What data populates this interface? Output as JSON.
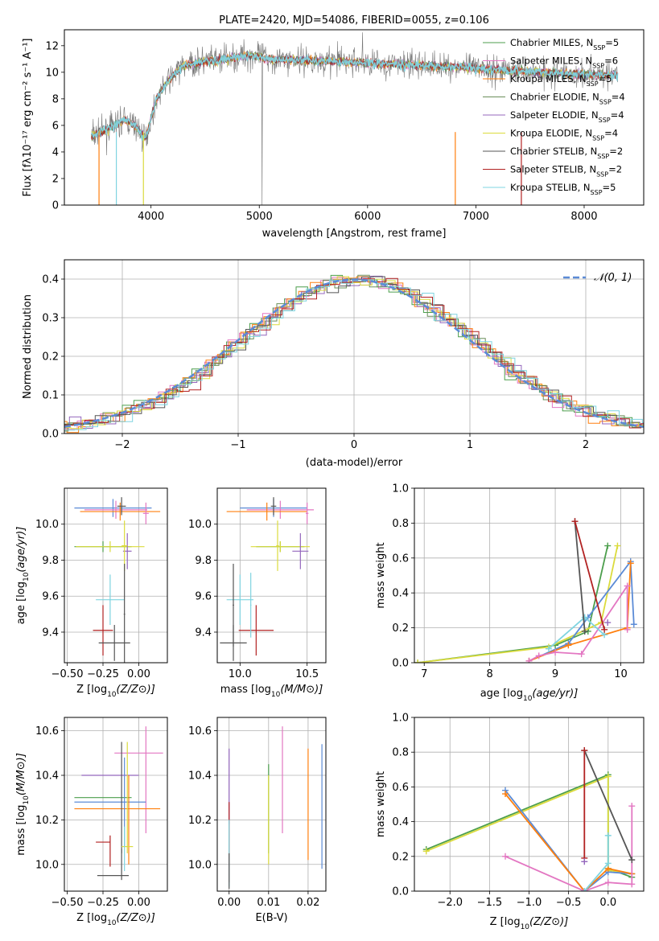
{
  "chart_data": [
    {
      "type": "line",
      "title": "PLATE=2420, MJD=54086, FIBERID=0055, z=0.106",
      "xlabel": "wavelength [Angstrom, rest frame]",
      "ylabel": "Flux [fλ10⁻¹⁷ erg cm⁻² s⁻¹ A⁻¹]",
      "xlim": [
        3200,
        8550
      ],
      "ylim": [
        0,
        13.2
      ],
      "xticks": [
        4000,
        5000,
        6000,
        7000,
        8000
      ],
      "yticks": [
        0,
        2,
        4,
        6,
        8,
        10,
        12
      ],
      "continuum": {
        "x": [
          3450,
          3550,
          3650,
          3750,
          3850,
          3950,
          4050,
          4150,
          4300,
          4500,
          4700,
          4900,
          5100,
          5400,
          5800,
          6200,
          6600,
          7000,
          7400,
          7800,
          8300
        ],
        "y": [
          5.2,
          5.5,
          5.9,
          6.4,
          6.0,
          5.0,
          8.0,
          9.3,
          10.5,
          10.8,
          11.0,
          11.3,
          11.0,
          10.9,
          10.8,
          10.6,
          10.5,
          10.3,
          10.1,
          9.9,
          9.8
        ]
      },
      "series": [
        {
          "name": "Chabrier MILES, N_SSP=5",
          "label_main": "Chabrier MILES, N",
          "label_sub": "SSP",
          "label_tail": "=5",
          "color": "#4c9e4c",
          "width": 0.8
        },
        {
          "name": "Salpeter MILES, N_SSP=6",
          "label_main": "Salpeter MILES, N",
          "label_sub": "SSP",
          "label_tail": "=6",
          "color": "#e377c2",
          "width": 0.8
        },
        {
          "name": "Kroupa MILES, N_SSP=5",
          "label_main": "Kroupa MILES, N",
          "label_sub": "SSP",
          "label_tail": "=5",
          "color": "#ff7f0e",
          "width": 0.9
        },
        {
          "name": "Chabrier ELODIE, N_SSP=4",
          "label_main": "Chabrier ELODIE, N",
          "label_sub": "SSP",
          "label_tail": "=4",
          "color": "#6b8e5a",
          "width": 0.8
        },
        {
          "name": "Salpeter ELODIE, N_SSP=4",
          "label_main": "Salpeter ELODIE, N",
          "label_sub": "SSP",
          "label_tail": "=4",
          "color": "#9467bd",
          "width": 0.8
        },
        {
          "name": "Kroupa ELODIE, N_SSP=4",
          "label_main": "Kroupa ELODIE, N",
          "label_sub": "SSP",
          "label_tail": "=4",
          "color": "#dbdb3d",
          "width": 0.8
        },
        {
          "name": "Chabrier STELIB, N_SSP=2",
          "label_main": "Chabrier STELIB, N",
          "label_sub": "SSP",
          "label_tail": "=2",
          "color": "#555555",
          "width": 0.8
        },
        {
          "name": "Salpeter STELIB, N_SSP=2",
          "label_main": "Salpeter STELIB, N",
          "label_sub": "SSP",
          "label_tail": "=2",
          "color": "#b22222",
          "width": 0.9
        },
        {
          "name": "Kroupa STELIB, N_SSP=5",
          "label_main": "Kroupa STELIB, N",
          "label_sub": "SSP",
          "label_tail": "=5",
          "color": "#7fd4e0",
          "width": 1.4
        }
      ]
    },
    {
      "type": "step",
      "xlabel": "(data-model)/error",
      "ylabel": "Normed distribution",
      "xlim": [
        -2.5,
        2.5
      ],
      "ylim": [
        0,
        0.45
      ],
      "xticks": [
        -2,
        -1,
        0,
        1,
        2
      ],
      "xtick_labels": [
        "−2",
        "−1",
        "0",
        "1",
        "2"
      ],
      "yticks": [
        0.0,
        0.1,
        0.2,
        0.3,
        0.4
      ],
      "ytick_labels": [
        "0.0",
        "0.1",
        "0.2",
        "0.3",
        "0.4"
      ],
      "bin_width": 0.1,
      "gaussian": {
        "name": "N(0,1)",
        "label": "𝒩(0, 1)",
        "color": "#5b8bd6"
      },
      "series_colors": [
        "#4c9e4c",
        "#e377c2",
        "#ff7f0e",
        "#6b8e5a",
        "#9467bd",
        "#dbdb3d",
        "#555555",
        "#b22222",
        "#7fd4e0"
      ]
    },
    {
      "type": "errorbar",
      "xlabel_main": "Z [log",
      "xlabel_sub": "10",
      "xlabel_tail": "(Z/Z⊙)]",
      "ylabel_main": "age  [log",
      "ylabel_sub": "10",
      "ylabel_tail": "(age/yr)]",
      "xlim": [
        -0.52,
        0.2
      ],
      "ylim": [
        9.23,
        10.2
      ],
      "xticks": [
        -0.5,
        -0.25,
        0.0
      ],
      "xtick_labels": [
        "−0.50",
        "−0.25",
        "0.00"
      ],
      "yticks": [
        9.4,
        9.6,
        9.8,
        10.0
      ],
      "ytick_labels": [
        "9.4",
        "9.6",
        "9.8",
        "10.0"
      ],
      "points": [
        {
          "x": -0.18,
          "y": 10.09,
          "xerr": 0.27,
          "yerr": 0.05,
          "color": "#5b8bd6"
        },
        {
          "x": -0.16,
          "y": 10.08,
          "xerr": 0.22,
          "yerr": 0.05,
          "color": "#e377c2"
        },
        {
          "x": -0.13,
          "y": 10.07,
          "xerr": 0.28,
          "yerr": 0.05,
          "color": "#ff7f0e"
        },
        {
          "x": -0.12,
          "y": 10.1,
          "xerr": 0.03,
          "yerr": 0.05,
          "color": "#555555"
        },
        {
          "x": 0.05,
          "y": 10.06,
          "xerr": 0.02,
          "yerr": 0.06,
          "color": "#e377c2"
        },
        {
          "x": -0.25,
          "y": 9.875,
          "xerr": 0.2,
          "yerr": 0.03,
          "color": "#4c9e4c"
        },
        {
          "x": -0.2,
          "y": 9.875,
          "xerr": 0.24,
          "yerr": 0.03,
          "color": "#dbdb3d"
        },
        {
          "x": -0.08,
          "y": 9.85,
          "xerr": 0.03,
          "yerr": 0.1,
          "color": "#9467bd"
        },
        {
          "x": -0.1,
          "y": 9.88,
          "xerr": 0.02,
          "yerr": 0.14,
          "color": "#dbdb3d"
        },
        {
          "x": -0.2,
          "y": 9.58,
          "xerr": 0.1,
          "yerr": 0.14,
          "color": "#7fd4e0"
        },
        {
          "x": -0.25,
          "y": 9.41,
          "xerr": 0.07,
          "yerr": 0.14,
          "color": "#b22222"
        },
        {
          "x": -0.17,
          "y": 9.34,
          "xerr": 0.11,
          "yerr": 0.1,
          "color": "#555555"
        },
        {
          "x": -0.1,
          "y": 9.5,
          "xerr": 0.005,
          "yerr": 0.28,
          "color": "#555555"
        }
      ]
    },
    {
      "type": "errorbar",
      "xlabel_main": "mass [log",
      "xlabel_sub": "10",
      "xlabel_tail": "(M/M⊙)]",
      "xlim": [
        9.83,
        10.64
      ],
      "ylim": [
        9.23,
        10.2
      ],
      "xticks": [
        10.0,
        10.5
      ],
      "xtick_labels": [
        "10.0",
        "10.5"
      ],
      "yticks": [
        9.4,
        9.6,
        9.8,
        10.0
      ],
      "ytick_labels": [
        "9.4",
        "9.6",
        "9.8",
        "10.0"
      ],
      "points": [
        {
          "x": 10.25,
          "y": 10.09,
          "xerr": 0.25,
          "yerr": 0.05,
          "color": "#5b8bd6"
        },
        {
          "x": 10.3,
          "y": 10.08,
          "xerr": 0.25,
          "yerr": 0.05,
          "color": "#e377c2"
        },
        {
          "x": 10.2,
          "y": 10.07,
          "xerr": 0.3,
          "yerr": 0.05,
          "color": "#ff7f0e"
        },
        {
          "x": 10.25,
          "y": 10.1,
          "xerr": 0.02,
          "yerr": 0.05,
          "color": "#555555"
        },
        {
          "x": 10.5,
          "y": 10.06,
          "xerr": 0.01,
          "yerr": 0.06,
          "color": "#e377c2"
        },
        {
          "x": 10.3,
          "y": 9.875,
          "xerr": 0.18,
          "yerr": 0.03,
          "color": "#4c9e4c"
        },
        {
          "x": 10.3,
          "y": 9.875,
          "xerr": 0.22,
          "yerr": 0.03,
          "color": "#dbdb3d"
        },
        {
          "x": 10.45,
          "y": 9.85,
          "xerr": 0.06,
          "yerr": 0.1,
          "color": "#9467bd"
        },
        {
          "x": 10.28,
          "y": 9.88,
          "xerr": 0.01,
          "yerr": 0.14,
          "color": "#dbdb3d"
        },
        {
          "x": 10.0,
          "y": 9.58,
          "xerr": 0.1,
          "yerr": 0.14,
          "color": "#7fd4e0"
        },
        {
          "x": 10.12,
          "y": 9.41,
          "xerr": 0.13,
          "yerr": 0.14,
          "color": "#b22222"
        },
        {
          "x": 9.95,
          "y": 9.34,
          "xerr": 0.1,
          "yerr": 0.1,
          "color": "#555555"
        },
        {
          "x": 9.95,
          "y": 9.55,
          "xerr": 0.005,
          "yerr": 0.23,
          "color": "#555555"
        },
        {
          "x": 10.08,
          "y": 9.55,
          "xerr": 0.005,
          "yerr": 0.18,
          "color": "#7fd4e0"
        }
      ]
    },
    {
      "type": "line",
      "xlabel_main": "age  [log",
      "xlabel_sub": "10",
      "xlabel_tail": "(age/yr)]",
      "ylabel": "mass weight",
      "xlim": [
        6.85,
        10.35
      ],
      "ylim": [
        0,
        1.0
      ],
      "xticks": [
        7,
        8,
        9,
        10
      ],
      "xtick_labels": [
        "7",
        "8",
        "9",
        "10"
      ],
      "yticks": [
        0.0,
        0.2,
        0.4,
        0.6,
        0.8,
        1.0
      ],
      "ytick_labels": [
        "0.0",
        "0.2",
        "0.4",
        "0.6",
        "0.8",
        "1.0"
      ],
      "series": [
        {
          "color": "#4c9e4c",
          "x": [
            6.9,
            9.0,
            9.5,
            9.8
          ],
          "y": [
            0.0,
            0.1,
            0.18,
            0.67
          ]
        },
        {
          "color": "#dbdb3d",
          "x": [
            6.9,
            8.9,
            9.7,
            9.95
          ],
          "y": [
            0.0,
            0.09,
            0.23,
            0.67
          ]
        },
        {
          "color": "#5b8bd6",
          "x": [
            8.6,
            9.2,
            9.5,
            10.15,
            10.2
          ],
          "y": [
            0.01,
            0.11,
            0.26,
            0.58,
            0.22
          ]
        },
        {
          "color": "#ff7f0e",
          "x": [
            8.6,
            9.2,
            10.1,
            10.15
          ],
          "y": [
            0.01,
            0.1,
            0.2,
            0.57
          ]
        },
        {
          "color": "#e377c2",
          "x": [
            8.6,
            8.75,
            9.0,
            9.4,
            10.1,
            10.1
          ],
          "y": [
            0.01,
            0.04,
            0.06,
            0.05,
            0.44,
            0.19
          ]
        },
        {
          "color": "#7fd4e0",
          "x": [
            8.9,
            9.45,
            9.75
          ],
          "y": [
            0.08,
            0.26,
            0.16
          ]
        },
        {
          "color": "#555555",
          "x": [
            9.3,
            9.45
          ],
          "y": [
            0.81,
            0.18
          ]
        },
        {
          "color": "#b22222",
          "x": [
            9.3,
            9.75
          ],
          "y": [
            0.81,
            0.19
          ]
        },
        {
          "color": "#9467bd",
          "x": [
            9.8
          ],
          "y": [
            0.23
          ]
        }
      ]
    },
    {
      "type": "errorbar",
      "xlabel_main": "Z [log",
      "xlabel_sub": "10",
      "xlabel_tail": "(Z/Z⊙)]",
      "ylabel_main": "mass [log",
      "ylabel_sub": "10",
      "ylabel_tail": "(M/M⊙)]",
      "xlim": [
        -0.52,
        0.2
      ],
      "ylim": [
        9.88,
        10.66
      ],
      "xticks": [
        -0.5,
        -0.25,
        0.0
      ],
      "xtick_labels": [
        "−0.50",
        "−0.25",
        "0.00"
      ],
      "yticks": [
        10.0,
        10.2,
        10.4,
        10.6
      ],
      "ytick_labels": [
        "10.0",
        "10.2",
        "10.4",
        "10.6"
      ],
      "points": [
        {
          "x": 0.0,
          "y": 10.5,
          "xerr": 0.17,
          "yerr": 0.001,
          "color": "#e377c2"
        },
        {
          "x": 0.05,
          "y": 10.38,
          "xerr": 0.001,
          "yerr": 0.24,
          "color": "#e377c2"
        },
        {
          "x": -0.2,
          "y": 10.4,
          "xerr": 0.2,
          "yerr": 0.001,
          "color": "#9467bd"
        },
        {
          "x": -0.25,
          "y": 10.3,
          "xerr": 0.2,
          "yerr": 0.001,
          "color": "#4c9e4c"
        },
        {
          "x": -0.2,
          "y": 10.28,
          "xerr": 0.25,
          "yerr": 0.001,
          "color": "#5b8bd6"
        },
        {
          "x": -0.15,
          "y": 10.25,
          "xerr": 0.3,
          "yerr": 0.001,
          "color": "#ff7f0e"
        },
        {
          "x": -0.12,
          "y": 10.3,
          "xerr": 0.001,
          "yerr": 0.25,
          "color": "#555555"
        },
        {
          "x": -0.08,
          "y": 10.3,
          "xerr": 0.001,
          "yerr": 0.25,
          "color": "#dbdb3d"
        },
        {
          "x": -0.1,
          "y": 10.28,
          "xerr": 0.001,
          "yerr": 0.2,
          "color": "#5b8bd6"
        },
        {
          "x": -0.07,
          "y": 10.2,
          "xerr": 0.001,
          "yerr": 0.2,
          "color": "#ff7f0e"
        },
        {
          "x": -0.08,
          "y": 10.08,
          "xerr": 0.04,
          "yerr": 0.001,
          "color": "#dbdb3d"
        },
        {
          "x": -0.25,
          "y": 10.1,
          "xerr": 0.05,
          "yerr": 0.001,
          "color": "#b22222"
        },
        {
          "x": -0.2,
          "y": 10.06,
          "xerr": 0.001,
          "yerr": 0.07,
          "color": "#b22222"
        },
        {
          "x": -0.1,
          "y": 10.07,
          "xerr": 0.001,
          "yerr": 0.1,
          "color": "#7fd4e0"
        },
        {
          "x": -0.18,
          "y": 9.95,
          "xerr": 0.11,
          "yerr": 0.001,
          "color": "#555555"
        },
        {
          "x": -0.12,
          "y": 10.0,
          "xerr": 0.001,
          "yerr": 0.07,
          "color": "#555555"
        }
      ]
    },
    {
      "type": "errorbar",
      "xlabel": "E(B-V)",
      "xlim": [
        -0.003,
        0.0245
      ],
      "ylim": [
        9.88,
        10.66
      ],
      "xticks": [
        0.0,
        0.01,
        0.02
      ],
      "xtick_labels": [
        "0.00",
        "0.01",
        "0.02"
      ],
      "yticks": [
        10.0,
        10.2,
        10.4,
        10.6
      ],
      "ytick_labels": [
        "10.0",
        "10.2",
        "10.4",
        "10.6"
      ],
      "points": [
        {
          "x": 0.0,
          "y": 10.35,
          "yerr": 0.17,
          "color": "#9467bd"
        },
        {
          "x": 0.0,
          "y": 10.1,
          "yerr": 0.18,
          "color": "#b22222"
        },
        {
          "x": 0.0,
          "y": 10.05,
          "yerr": 0.15,
          "color": "#7fd4e0"
        },
        {
          "x": 0.0,
          "y": 9.97,
          "yerr": 0.08,
          "color": "#555555"
        },
        {
          "x": 0.01,
          "y": 10.25,
          "yerr": 0.2,
          "color": "#4c9e4c"
        },
        {
          "x": 0.01,
          "y": 10.2,
          "yerr": 0.2,
          "color": "#dbdb3d"
        },
        {
          "x": 0.0135,
          "y": 10.38,
          "yerr": 0.24,
          "color": "#e377c2"
        },
        {
          "x": 0.02,
          "y": 10.27,
          "yerr": 0.25,
          "color": "#ff7f0e"
        },
        {
          "x": 0.0235,
          "y": 10.26,
          "yerr": 0.28,
          "color": "#5b8bd6"
        }
      ]
    },
    {
      "type": "line",
      "xlabel_main": "Z [log",
      "xlabel_sub": "10",
      "xlabel_tail": "(Z/Z⊙)]",
      "ylabel": "mass weight",
      "xlim": [
        -2.45,
        0.45
      ],
      "ylim": [
        0,
        1.0
      ],
      "xticks": [
        -2.0,
        -1.5,
        -1.0,
        -0.5,
        0.0
      ],
      "xtick_labels": [
        "−2.0",
        "−1.5",
        "−1.0",
        "−0.5",
        "0.0"
      ],
      "yticks": [
        0.0,
        0.2,
        0.4,
        0.6,
        0.8,
        1.0
      ],
      "ytick_labels": [
        "0.0",
        "0.2",
        "0.4",
        "0.6",
        "0.8",
        "1.0"
      ],
      "series": [
        {
          "color": "#4c9e4c",
          "x": [
            -2.3,
            0.0,
            0.0,
            0.3
          ],
          "y": [
            0.24,
            0.67,
            0.13,
            0.08
          ]
        },
        {
          "color": "#dbdb3d",
          "x": [
            -2.3,
            0.0,
            0.0,
            0.3
          ],
          "y": [
            0.23,
            0.66,
            0.12,
            0.1
          ]
        },
        {
          "color": "#5b8bd6",
          "x": [
            -1.3,
            -0.3,
            0.0,
            0.3
          ],
          "y": [
            0.58,
            0.0,
            0.11,
            0.1
          ]
        },
        {
          "color": "#ff7f0e",
          "x": [
            -1.3,
            -0.3,
            0.0,
            0.3
          ],
          "y": [
            0.56,
            0.0,
            0.13,
            0.1
          ]
        },
        {
          "color": "#e377c2",
          "x": [
            -1.3,
            -0.3,
            0.0,
            0.3,
            0.3
          ],
          "y": [
            0.2,
            0.0,
            0.05,
            0.04,
            0.49
          ]
        },
        {
          "color": "#7fd4e0",
          "x": [
            -0.3,
            0.0,
            0.0
          ],
          "y": [
            0.0,
            0.16,
            0.32
          ]
        },
        {
          "color": "#555555",
          "x": [
            -0.3,
            0.3
          ],
          "y": [
            0.81,
            0.18
          ]
        },
        {
          "color": "#b22222",
          "x": [
            -0.3,
            -0.3
          ],
          "y": [
            0.81,
            0.19
          ]
        },
        {
          "color": "#9467bd",
          "x": [
            -0.3
          ],
          "y": [
            0.17
          ]
        }
      ]
    }
  ]
}
